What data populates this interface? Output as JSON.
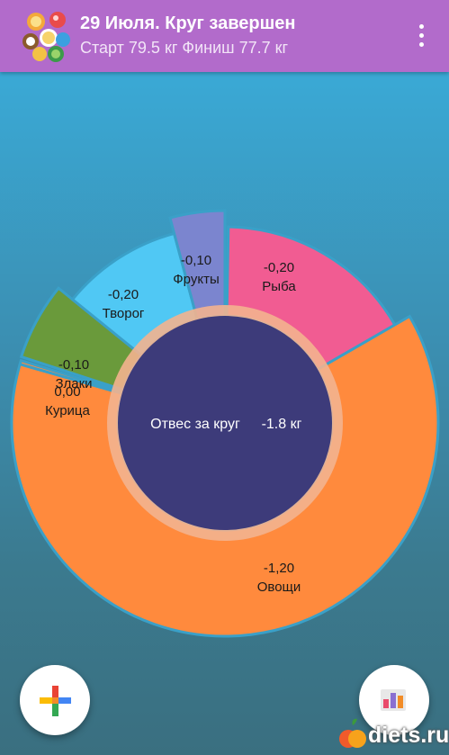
{
  "appbar": {
    "title": "29 Июля. Круг завершен",
    "subtitle": "Старт 79.5 кг Финиш 77.7 кг",
    "logo_icon": "diet-food-logo-icon",
    "menu_icon": "more-vert-icon"
  },
  "chart_data": {
    "type": "pie",
    "variant": "donut",
    "center_label": "Отвес за круг",
    "center_value": "-1.8 кг",
    "slices": [
      {
        "name": "Рыба",
        "value": -0.2,
        "label": "-0,20",
        "color": "#f15c92"
      },
      {
        "name": "Овощи",
        "value": -1.2,
        "label": "-1,20",
        "color": "#ff8a3d"
      },
      {
        "name": "Курица",
        "value": 0.0,
        "label": "0,00",
        "color": "#ff8a3d"
      },
      {
        "name": "Злаки",
        "value": -0.1,
        "label": "-0,10",
        "color": "#6a9a3b"
      },
      {
        "name": "Творог",
        "value": -0.2,
        "label": "-0,20",
        "color": "#50c8f4"
      },
      {
        "name": "Фрукты",
        "value": -0.1,
        "label": "-0,10",
        "color": "#7b85cf"
      }
    ]
  },
  "buttons": {
    "add_icon": "plus-colored-icon",
    "stats_icon": "bar-chart-icon"
  },
  "watermark": {
    "text": "diets.ru",
    "icon": "apple-logo-icon"
  }
}
